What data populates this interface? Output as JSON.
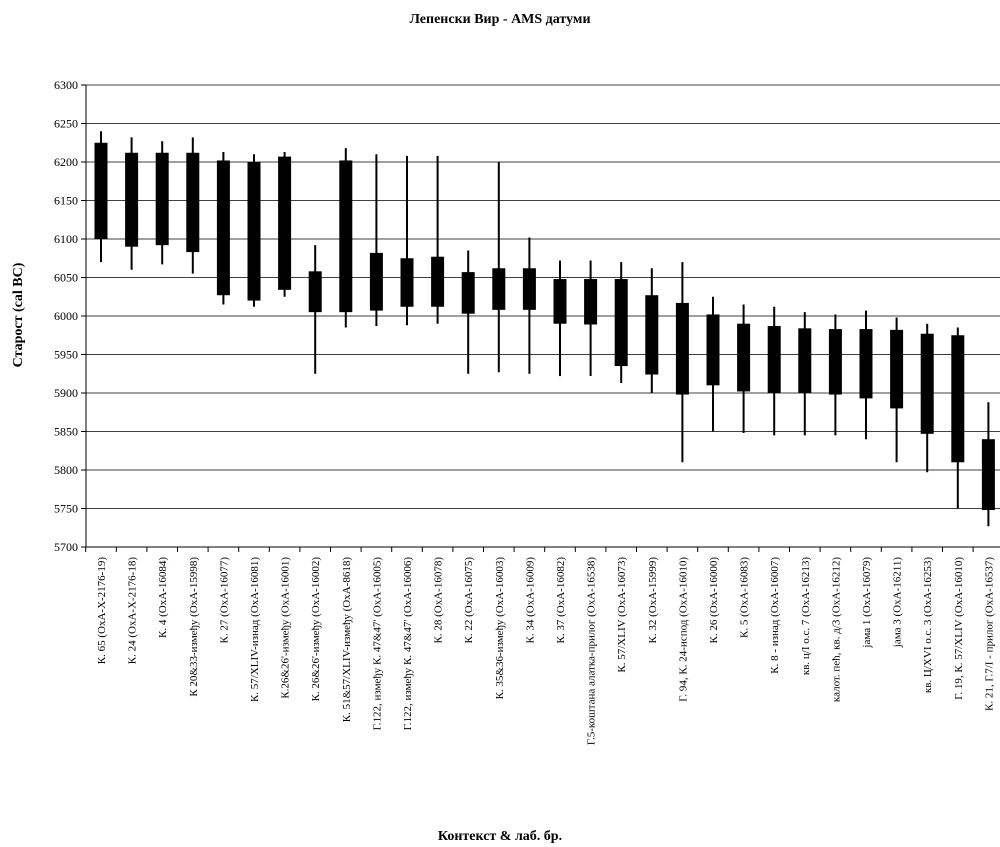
{
  "chart_data": {
    "type": "candlestick",
    "title": "Лепенски Вир - AMS датуми",
    "xlabel": "Контекст & лаб. бр.",
    "ylabel": "Старост (cal BC)",
    "ylim": [
      5700,
      6300
    ],
    "yticks": [
      5700,
      5750,
      5800,
      5850,
      5900,
      5950,
      6000,
      6050,
      6100,
      6150,
      6200,
      6250,
      6300
    ],
    "grid": true,
    "legend": "none",
    "bar_color": "#000000",
    "categories": [
      "К. 65 (OxA-X-2176-19)",
      "К. 24 (OxA-X-2176-18)",
      "К. 4 (OxA-16084)",
      "К 20&33-између (OxA-15998)",
      "К. 27 (OxA-16077)",
      "К. 57/XLIV-изнад (OxA-16081)",
      "К.26&26'-између (OxA-16001)",
      "К. 26&26'-између (OxA-16002)",
      "К. 51&57/XLIV-између (OxA-8618)",
      "Г.122, између К. 47&47' (OxA-16005)",
      "Г.122, између К. 47&47' (OxA-16006)",
      "К. 28 (OxA-16078)",
      "К. 22 (OxA-16075)",
      "К. 35&36-између (OxA-16003)",
      "К. 34 (OxA-16009)",
      "К. 37 (OxA-16082)",
      "Г.5-коштана алатка-прилог (OxA-16538)",
      "К. 57/XLIV (OxA-16073)",
      "К. 32 (OxA-15999)",
      "Г. 94, К. 24-испод (OxA-16010)",
      "К. 26 (OxA-16000)",
      "К. 5 (OxA-16083)",
      "К. 8 - изнад (OxA-16007)",
      "кв. ц/I о.с. 7 (OxA-16213)",
      "калот. пећ, кв. д/3 (OxA-16212)",
      "јама 1 (OxA-16079)",
      "јама 3 (OxA-16211)",
      "кв. Ц/XVI о.с. 3 (OxA-16253)",
      "Г. 19, К. 57/XLIV (OxA-16010)",
      "К. 21, Г.7/I - прилог (OxA-16537)"
    ],
    "series": [
      {
        "box_high": [
          6225,
          6212,
          6212,
          6212,
          6202,
          6200,
          6207,
          6058,
          6202,
          6082,
          6075,
          6077,
          6057,
          6062,
          6062,
          6048,
          6048,
          6048,
          6027,
          6017,
          6002,
          5990,
          5987,
          5984,
          5983,
          5983,
          5982,
          5977,
          5975,
          5840
        ],
        "box_low": [
          6100,
          6090,
          6092,
          6083,
          6027,
          6020,
          6034,
          6005,
          6005,
          6007,
          6012,
          6012,
          6003,
          6008,
          6008,
          5990,
          5989,
          5935,
          5924,
          5898,
          5910,
          5902,
          5900,
          5900,
          5898,
          5893,
          5880,
          5847,
          5810,
          5748
        ],
        "whisker_high": [
          6240,
          6232,
          6227,
          6232,
          6213,
          6210,
          6213,
          6092,
          6218,
          6210,
          6208,
          6208,
          6085,
          6200,
          6102,
          6072,
          6072,
          6070,
          6062,
          6070,
          6025,
          6015,
          6012,
          6005,
          6002,
          6007,
          5998,
          5990,
          5985,
          5888
        ],
        "whisker_low": [
          6070,
          6060,
          6067,
          6055,
          6015,
          6012,
          6025,
          5925,
          5985,
          5987,
          5988,
          5990,
          5925,
          5927,
          5925,
          5922,
          5922,
          5913,
          5900,
          5810,
          5850,
          5848,
          5845,
          5845,
          5845,
          5840,
          5810,
          5797,
          5750,
          5727
        ]
      }
    ]
  }
}
